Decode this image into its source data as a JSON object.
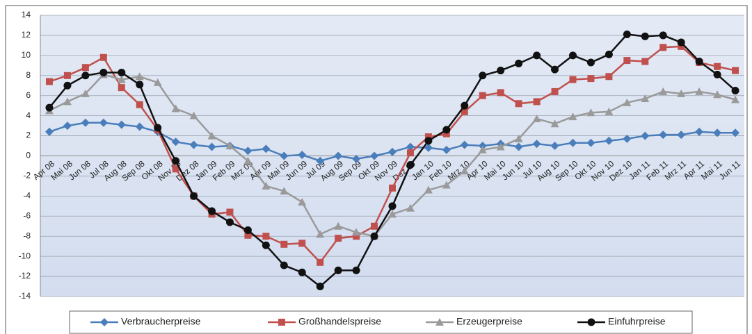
{
  "chart_data": {
    "type": "line",
    "categories": [
      "Apr 08",
      "Mai 08",
      "Jun 08",
      "Jul 08",
      "Aug 08",
      "Sep 08",
      "Okt 08",
      "Nov 08",
      "Dez 08",
      "Jan 09",
      "Feb 09",
      "Mrz 09",
      "Apr 09",
      "Mai 09",
      "Jun 09",
      "Jul 09",
      "Aug 09",
      "Sep 09",
      "Okt 09",
      "Nov 09",
      "Dez 09",
      "Jan 10",
      "Feb 10",
      "Mrz 10",
      "Apr 10",
      "Mai 10",
      "Jun 10",
      "Jul 10",
      "Aug 10",
      "Sep 10",
      "Okt 10",
      "Nov 10",
      "Dez 10",
      "Jan 11",
      "Feb 11",
      "Mrz 11",
      "Apr 11",
      "Mai 11",
      "Jun 11"
    ],
    "series": [
      {
        "name": "Verbraucherpreise",
        "color": "#4a7ebb",
        "marker": "diamond",
        "values": [
          2.4,
          3.0,
          3.3,
          3.3,
          3.1,
          2.9,
          2.4,
          1.4,
          1.1,
          0.9,
          1.0,
          0.5,
          0.7,
          0.0,
          0.1,
          -0.5,
          0.0,
          -0.3,
          0.0,
          0.4,
          0.9,
          0.8,
          0.6,
          1.1,
          1.0,
          1.2,
          0.9,
          1.2,
          1.0,
          1.3,
          1.3,
          1.5,
          1.7,
          2.0,
          2.1,
          2.1,
          2.4,
          2.3,
          2.3
        ]
      },
      {
        "name": "Großhandelspreise",
        "color": "#c0504d",
        "marker": "square",
        "values": [
          7.4,
          8.0,
          8.8,
          9.8,
          6.8,
          5.1,
          2.6,
          -1.3,
          -4.0,
          -5.8,
          -5.6,
          -7.9,
          -8.0,
          -8.8,
          -8.7,
          -10.6,
          -8.2,
          -8.0,
          -7.0,
          -3.2,
          0.3,
          1.9,
          2.2,
          4.4,
          6.0,
          6.3,
          5.2,
          5.4,
          6.4,
          7.6,
          7.7,
          7.9,
          9.5,
          9.4,
          10.8,
          10.9,
          9.3,
          8.9,
          8.5
        ]
      },
      {
        "name": "Erzeugerpreise",
        "color": "#9a9a9a",
        "marker": "triangle",
        "values": [
          4.5,
          5.4,
          6.2,
          8.1,
          7.6,
          7.9,
          7.3,
          4.7,
          4.0,
          2.0,
          1.0,
          -0.5,
          -3.0,
          -3.5,
          -4.6,
          -7.8,
          -7.0,
          -7.6,
          -8.0,
          -5.8,
          -5.2,
          -3.4,
          -2.9,
          -1.5,
          0.6,
          0.9,
          1.7,
          3.7,
          3.2,
          3.9,
          4.3,
          4.4,
          5.3,
          5.7,
          6.4,
          6.2,
          6.4,
          6.1,
          5.6
        ]
      },
      {
        "name": "Einfuhrpreise",
        "color": "#111111",
        "marker": "circle",
        "values": [
          4.8,
          7.0,
          8.0,
          8.3,
          8.3,
          7.1,
          2.8,
          -0.5,
          -4.0,
          -5.5,
          -6.6,
          -7.4,
          -8.9,
          -10.9,
          -11.6,
          -13.0,
          -11.4,
          -11.4,
          -8.0,
          -5.0,
          -0.9,
          1.5,
          2.6,
          5.0,
          8.0,
          8.5,
          9.2,
          10.0,
          8.6,
          10.0,
          9.3,
          10.1,
          12.1,
          11.9,
          12.0,
          11.3,
          9.4,
          8.1,
          6.5
        ]
      }
    ],
    "ylim": [
      -14,
      14
    ],
    "yticks": [
      -14,
      -12,
      -10,
      -8,
      -6,
      -4,
      -2,
      0,
      2,
      4,
      6,
      8,
      10,
      12,
      14
    ],
    "grid": true,
    "legend": "bottom"
  }
}
